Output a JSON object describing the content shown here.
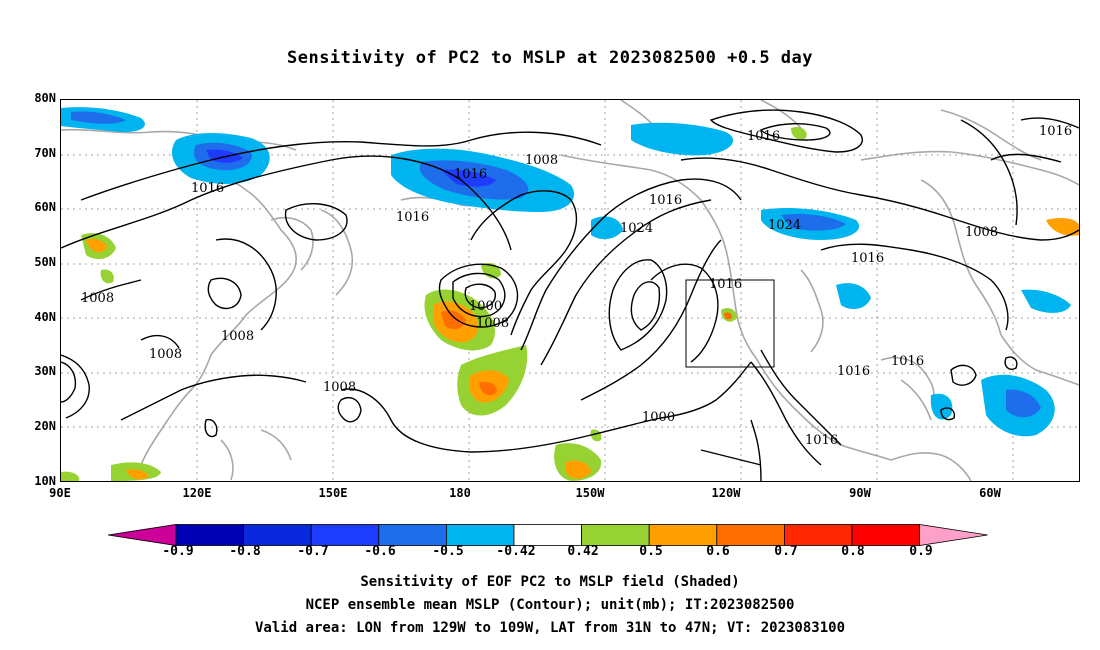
{
  "title": "Sensitivity of PC2 to MSLP at 2023082500 +0.5 day",
  "lat_labels": [
    "80N",
    "70N",
    "60N",
    "50N",
    "40N",
    "30N",
    "20N",
    "10N"
  ],
  "lon_labels": [
    "90E",
    "120E",
    "150E",
    "180",
    "150W",
    "120W",
    "90W",
    "60W"
  ],
  "colorbar": {
    "labels": [
      "-0.9",
      "-0.8",
      "-0.7",
      "-0.6",
      "-0.5",
      "-0.42",
      "0.42",
      "0.5",
      "0.6",
      "0.7",
      "0.8",
      "0.9"
    ],
    "colors": [
      "#cc0099",
      "#0000b4",
      "#0a28dc",
      "#1e3cff",
      "#1e6eeb",
      "#00b4f0",
      "#ffffff",
      "#96d232",
      "#ffa000",
      "#ff6e00",
      "#ff2800",
      "#ff0000",
      "#ffa0c8"
    ]
  },
  "contour_labels": [
    {
      "text": "1016"
    },
    {
      "text": "1016"
    },
    {
      "text": "1016"
    },
    {
      "text": "1008"
    },
    {
      "text": "1016"
    },
    {
      "text": "1000"
    },
    {
      "text": "1008"
    },
    {
      "text": "1000"
    },
    {
      "text": "1016"
    },
    {
      "text": "1024"
    },
    {
      "text": "1024"
    },
    {
      "text": "1016"
    },
    {
      "text": "1008"
    },
    {
      "text": "1016"
    },
    {
      "text": "1016"
    },
    {
      "text": "1016"
    },
    {
      "text": "1016"
    },
    {
      "text": "1016"
    },
    {
      "text": "1008"
    },
    {
      "text": "1008"
    },
    {
      "text": "1008"
    },
    {
      "text": "1008"
    }
  ],
  "valid_area_box": {
    "lon_west": 129,
    "lon_east": 109,
    "lat_south": 31,
    "lat_north": 47
  },
  "caption": {
    "line1": "Sensitivity of EOF PC2 to MSLP field (Shaded)",
    "line2": "NCEP ensemble mean MSLP (Contour); unit(mb); IT:2023082500",
    "line3": "Valid area: LON from 129W to 109W, LAT from 31N to 47N; VT: 2023083100"
  }
}
